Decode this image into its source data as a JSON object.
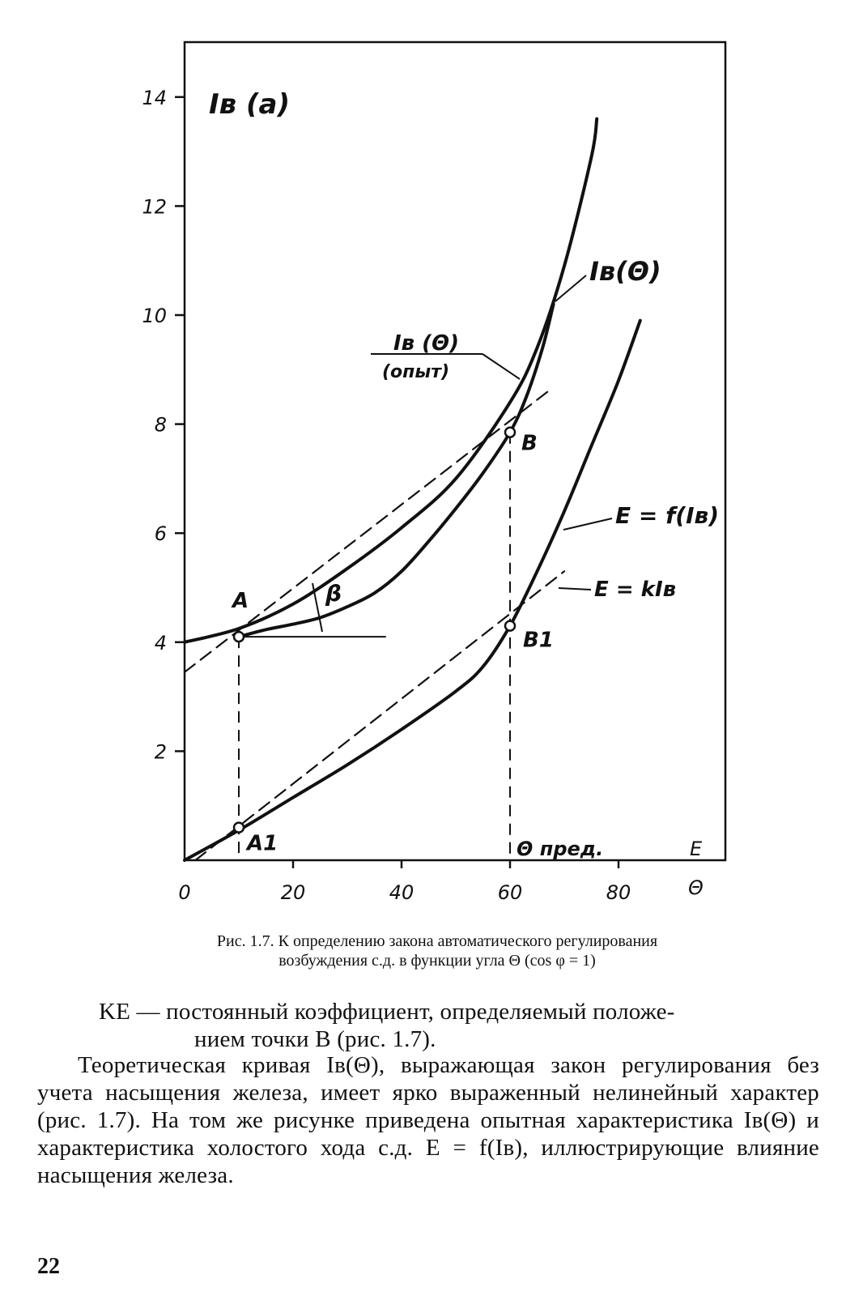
{
  "chart_data": {
    "type": "line",
    "x_ticks": [
      "0",
      "20",
      "40",
      "60",
      "80"
    ],
    "y_ticks": [
      "2",
      "4",
      "6",
      "8",
      "10",
      "12",
      "14"
    ],
    "x_axis_letters": [
      "Θ",
      "E"
    ],
    "ylabel": "Iв (a)",
    "xlim": [
      0,
      100
    ],
    "ylim": [
      0,
      15
    ],
    "series": [
      {
        "name": "Iв (Θ)",
        "style": "solid",
        "x": [
          0,
          10,
          20,
          30,
          40,
          50,
          60,
          65,
          70,
          75,
          76
        ],
        "y": [
          4.0,
          4.25,
          4.7,
          5.35,
          6.1,
          7.0,
          8.4,
          9.4,
          10.9,
          12.9,
          13.6
        ]
      },
      {
        "name": "Iв (Θ) (опыт)",
        "style": "solid",
        "x": [
          10,
          15,
          20,
          25,
          30,
          35,
          40,
          45,
          50,
          55,
          60,
          63,
          66,
          68
        ],
        "y": [
          4.1,
          4.23,
          4.33,
          4.45,
          4.65,
          4.9,
          5.3,
          5.85,
          6.45,
          7.1,
          7.85,
          8.5,
          9.4,
          10.2
        ]
      },
      {
        "name": "E = f(Iв)",
        "style": "solid",
        "x": [
          0,
          10,
          20,
          30,
          40,
          50,
          55,
          60,
          65,
          70,
          75,
          80,
          84
        ],
        "y": [
          0.0,
          0.55,
          1.15,
          1.75,
          2.4,
          3.1,
          3.55,
          4.3,
          5.3,
          6.4,
          7.6,
          8.8,
          9.9
        ]
      },
      {
        "name": "E = kIв",
        "style": "dashed",
        "x": [
          2,
          70
        ],
        "y": [
          0.0,
          5.3
        ]
      },
      {
        "name": "",
        "style": "dashed",
        "x": [
          0,
          67
        ],
        "y": [
          3.45,
          8.6
        ]
      },
      {
        "name": "",
        "style": "solid",
        "x": [
          10,
          37
        ],
        "y": [
          4.1,
          4.1
        ]
      }
    ],
    "points": [
      {
        "label": "A",
        "x": 10,
        "y": 4.1
      },
      {
        "label": "B",
        "x": 60,
        "y": 7.85
      },
      {
        "label": "A1",
        "x": 10,
        "y": 0.6
      },
      {
        "label": "B1",
        "x": 60,
        "y": 4.3
      }
    ],
    "annotations": {
      "theta_pred": "Θ пред.",
      "beta": "β",
      "label_ib_theta": "Iв(Θ)",
      "label_ib_theta_exp": "Iв (Θ)",
      "label_exp": "(опыт)",
      "label_e_f": "E = f(Iв)",
      "label_e_k": "E = kIв"
    }
  },
  "caption": {
    "line1": "Рис. 1.7. К определению закона автоматического регулирования",
    "line2": "возбуждения с.д. в функции угла Θ (cos φ = 1)"
  },
  "text": {
    "p1_line1": "KE — постоянный коэффициент, определяемый положе-",
    "p1_line2": "нием точки B (рис. 1.7).",
    "p2": "Теоретическая кривая Iв(Θ), выражающая закон регулирования без учета насыщения железа, имеет ярко выраженный нелинейный характер (рис. 1.7). На том же рисунке приведена опытная характеристика Iв(Θ) и характеристика холостого хода с.д. E = f(Iв), иллюстрирующие влияние насыщения железа."
  },
  "page_number": "22"
}
